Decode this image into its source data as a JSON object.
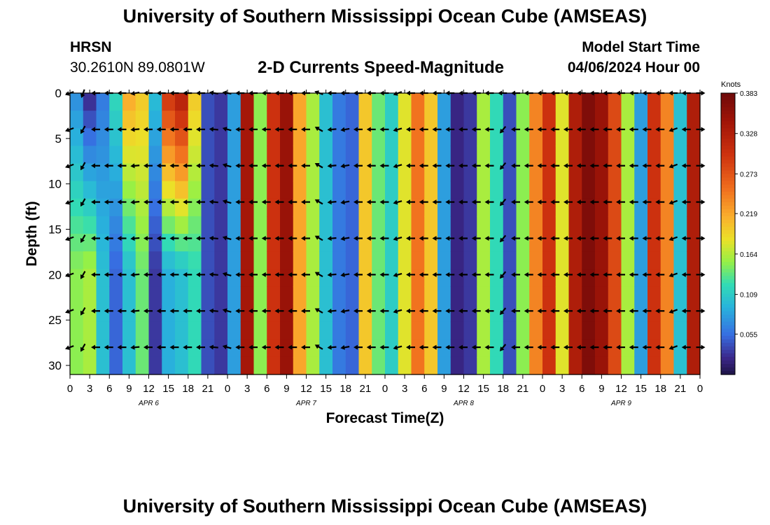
{
  "header": {
    "title": "University of Southern Mississippi Ocean Cube (AMSEAS)",
    "station": "HRSN",
    "coords": "30.2610N  89.0801W",
    "subtitle": "2-D Currents Speed-Magnitude",
    "start_label": "Model Start Time",
    "start_value": "04/06/2024 Hour 00"
  },
  "footer": {
    "title": "University of Southern Mississippi Ocean Cube (AMSEAS)"
  },
  "chart_data": {
    "type": "heatmap",
    "title": "2-D Currents Speed-Magnitude",
    "xlabel": "Forecast Time(Z)",
    "ylabel": "Depth (ft)",
    "xlim": [
      0,
      96
    ],
    "ylim": [
      0,
      31
    ],
    "x_ticks": [
      "0",
      "3",
      "6",
      "9",
      "12",
      "15",
      "18",
      "21",
      "0",
      "3",
      "6",
      "9",
      "12",
      "15",
      "18",
      "21",
      "0",
      "3",
      "6",
      "9",
      "12",
      "15",
      "18",
      "21",
      "0",
      "3",
      "6",
      "9",
      "12",
      "15",
      "18",
      "21",
      "0"
    ],
    "y_ticks": [
      0,
      5,
      10,
      15,
      20,
      25,
      30
    ],
    "y_tick_labels": [
      "0",
      "5",
      "10",
      "15",
      "20",
      "25",
      "30"
    ],
    "day_labels": [
      {
        "label": "APR 6",
        "hour": 12
      },
      {
        "label": "APR 7",
        "hour": 36
      },
      {
        "label": "APR 8",
        "hour": 60
      },
      {
        "label": "APR 9",
        "hour": 84
      }
    ],
    "colorbar": {
      "unit": "Knots",
      "min": 0,
      "max": 0.383,
      "tick_values": [
        0.383,
        0.328,
        0.273,
        0.219,
        0.164,
        0.109,
        0.055
      ],
      "tick_labels": [
        "0.383",
        "0.328",
        "0.273",
        "0.219",
        "0.164",
        "0.109",
        "0.055"
      ]
    },
    "time_hours": [
      0,
      2,
      4,
      6,
      8,
      10,
      12,
      14,
      16,
      18,
      20,
      22,
      24,
      26,
      28,
      30,
      32,
      34,
      36,
      38,
      40,
      42,
      44,
      46,
      48,
      50,
      52,
      54,
      56,
      58,
      60,
      62,
      64,
      66,
      68,
      70,
      72,
      74,
      76,
      78,
      80,
      82,
      84,
      86,
      88,
      90,
      92,
      94,
      96
    ],
    "surface_speed": [
      0.07,
      0.02,
      0.06,
      0.12,
      0.22,
      0.2,
      0.1,
      0.3,
      0.33,
      0.2,
      0.04,
      0.03,
      0.08,
      0.34,
      0.15,
      0.3,
      0.35,
      0.22,
      0.16,
      0.1,
      0.06,
      0.05,
      0.2,
      0.14,
      0.11,
      0.18,
      0.25,
      0.2,
      0.08,
      0.02,
      0.03,
      0.16,
      0.12,
      0.04,
      0.15,
      0.24,
      0.3,
      0.18,
      0.33,
      0.37,
      0.35,
      0.28,
      0.16,
      0.08,
      0.3,
      0.24,
      0.1,
      0.33,
      0.24
    ],
    "bottom_speed": [
      0.15,
      0.16,
      0.1,
      0.05,
      0.1,
      0.14,
      0.03,
      0.09,
      0.1,
      0.12,
      0.04,
      0.03,
      0.08,
      0.34,
      0.15,
      0.3,
      0.35,
      0.22,
      0.16,
      0.1,
      0.06,
      0.05,
      0.2,
      0.14,
      0.11,
      0.18,
      0.25,
      0.2,
      0.08,
      0.02,
      0.03,
      0.16,
      0.12,
      0.04,
      0.15,
      0.24,
      0.3,
      0.18,
      0.33,
      0.37,
      0.35,
      0.28,
      0.16,
      0.08,
      0.3,
      0.24,
      0.1,
      0.33,
      0.24
    ],
    "vector_depths_ft": [
      0,
      4,
      8,
      12,
      16,
      20,
      24,
      28
    ],
    "vector_times_hours": [
      0,
      2,
      4,
      6,
      8,
      10,
      12,
      14,
      16,
      18,
      20,
      22,
      24,
      26,
      28,
      30,
      32,
      34,
      36,
      38,
      40,
      42,
      44,
      46,
      48,
      50,
      52,
      54,
      56,
      58,
      60,
      62,
      64,
      66,
      68,
      70,
      72,
      74,
      76,
      78,
      80,
      82,
      84,
      86,
      88,
      90,
      92,
      94,
      96
    ],
    "vector_direction_deg_by_depth": {
      "surface": [
        200,
        250,
        180,
        180,
        180,
        190,
        180,
        180,
        180,
        180,
        180,
        170,
        170,
        180,
        180,
        180,
        180,
        180,
        180,
        160,
        180,
        180,
        180,
        180,
        180,
        200,
        180,
        180,
        180,
        180,
        180,
        180,
        180,
        180,
        180,
        180,
        180,
        180,
        180,
        180,
        180,
        180,
        180,
        180,
        180,
        180,
        180,
        180,
        0
      ],
      "subsurface": [
        200,
        240,
        180,
        180,
        180,
        185,
        180,
        180,
        180,
        180,
        180,
        175,
        165,
        180,
        180,
        180,
        180,
        180,
        180,
        150,
        185,
        190,
        180,
        180,
        180,
        195,
        180,
        180,
        180,
        180,
        180,
        180,
        180,
        230,
        180,
        180,
        180,
        180,
        180,
        180,
        180,
        180,
        180,
        180,
        180,
        180,
        200,
        180,
        0
      ]
    }
  }
}
